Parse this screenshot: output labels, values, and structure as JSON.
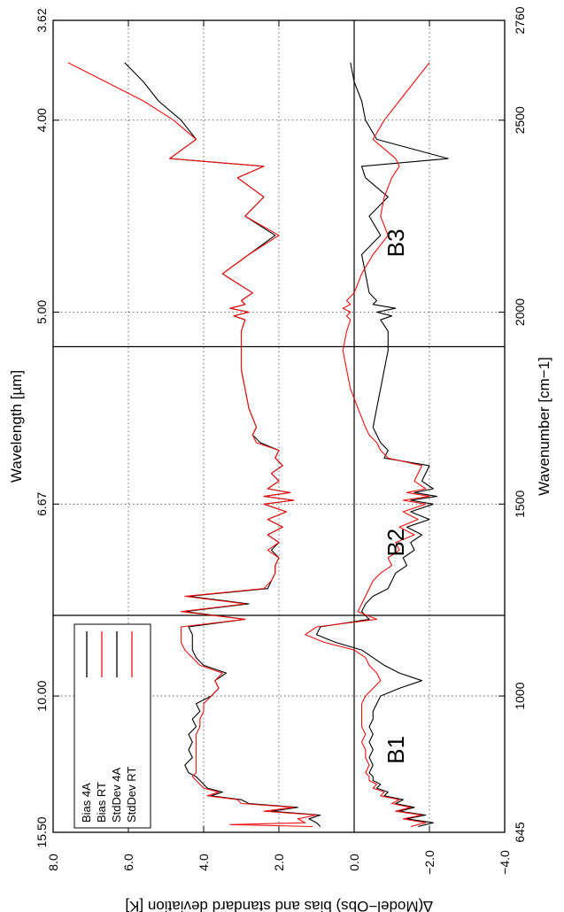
{
  "chart_data": {
    "type": "line",
    "rotated": "page rotated 90 degrees; wavenumber runs bottom to top, value runs left (positive) to right (negative)",
    "xlabel_bottom": "Wavenumber [cm−1]",
    "xlabel_top": "Wavelength [µm]",
    "ylabel": "∆(Model−Obs) bias and standard deviation [K]",
    "xlim": [
      645,
      2760
    ],
    "ylim": [
      -4.0,
      8.0
    ],
    "x_ticks_bottom": [
      "645",
      "1000",
      "1500",
      "2000",
      "2500",
      "2760"
    ],
    "x_ticks_bottom_values": [
      645,
      1000,
      1500,
      2000,
      2500,
      2760
    ],
    "x_ticks_top": [
      "15.50",
      "10.00",
      "6.67",
      "5.00",
      "4.00",
      "3.62"
    ],
    "x_ticks_top_values": [
      645,
      1000,
      1500,
      2000,
      2500,
      2760
    ],
    "y_ticks": [
      "8.0",
      "6.0",
      "4.0",
      "2.0",
      "0.0",
      "−2.0",
      "−4.0"
    ],
    "y_tick_values": [
      8,
      6,
      4,
      2,
      0,
      -2,
      -4
    ],
    "grid": true,
    "zero_line": 0,
    "band_dividers": [
      1210,
      1910
    ],
    "bands": [
      {
        "label": "B1",
        "x": 860
      },
      {
        "label": "B2",
        "x": 1400
      },
      {
        "label": "B3",
        "x": 2180
      }
    ],
    "legend_position": "bottom-left",
    "series": [
      {
        "name": "Bias 4A",
        "color": "#000000",
        "x": [
          660,
          670,
          680,
          690,
          700,
          710,
          720,
          730,
          740,
          750,
          760,
          770,
          780,
          790,
          800,
          820,
          840,
          860,
          880,
          900,
          920,
          940,
          960,
          980,
          1000,
          1020,
          1040,
          1060,
          1080,
          1100,
          1120,
          1140,
          1160,
          1180,
          1200,
          1220,
          1240,
          1260,
          1280,
          1300,
          1320,
          1340,
          1360,
          1380,
          1400,
          1420,
          1440,
          1460,
          1480,
          1500,
          1510,
          1520,
          1530,
          1540,
          1560,
          1580,
          1600,
          1620,
          1640,
          1660,
          1680,
          1700,
          1750,
          1800,
          1850,
          1900,
          1950,
          1980,
          1990,
          2000,
          2010,
          2020,
          2030,
          2050,
          2100,
          2150,
          2200,
          2250,
          2300,
          2350,
          2380,
          2400,
          2450,
          2500,
          2550,
          2600,
          2650
        ],
        "values": [
          0.9,
          1.0,
          1.2,
          0.9,
          2.2,
          1.5,
          2.8,
          3.0,
          3.8,
          3.5,
          3.9,
          4.0,
          4.1,
          4.2,
          4.4,
          4.5,
          4.3,
          4.4,
          4.3,
          4.4,
          4.2,
          4.3,
          4.1,
          4.2,
          3.8,
          3.6,
          3.7,
          3.4,
          4.0,
          4.2,
          4.3,
          4.3,
          4.3,
          4.4,
          2.9,
          4.5,
          2.8,
          4.4,
          2.3,
          2.2,
          2.1,
          2.1,
          2.0,
          2.2,
          2.0,
          2.3,
          1.9,
          2.3,
          1.8,
          2.4,
          1.6,
          2.4,
          1.7,
          2.3,
          2.0,
          2.2,
          1.9,
          2.1,
          2.0,
          2.5,
          2.7,
          2.6,
          2.8,
          2.9,
          3.0,
          3.0,
          3.0,
          2.9,
          3.2,
          2.8,
          3.3,
          2.9,
          3.0,
          2.7,
          3.5,
          2.8,
          2.1,
          2.9,
          2.4,
          3.1,
          2.4,
          4.9,
          4.2,
          4.6,
          5.2,
          5.6,
          6.1
        ]
      },
      {
        "name": "Bias RT",
        "color": "#ee1111",
        "x": [
          660,
          665,
          670,
          680,
          690,
          700,
          710,
          720,
          730,
          740,
          750,
          760,
          770,
          780,
          790,
          800,
          820,
          840,
          860,
          880,
          900,
          920,
          940,
          960,
          980,
          1000,
          1020,
          1040,
          1060,
          1080,
          1100,
          1120,
          1140,
          1160,
          1180,
          1200,
          1220,
          1240,
          1260,
          1280,
          1300,
          1320,
          1340,
          1360,
          1380,
          1400,
          1420,
          1440,
          1460,
          1480,
          1500,
          1510,
          1520,
          1530,
          1540,
          1560,
          1580,
          1600,
          1620,
          1640,
          1660,
          1680,
          1700,
          1750,
          1800,
          1850,
          1900,
          1950,
          1980,
          1990,
          2000,
          2010,
          2020,
          2030,
          2050,
          2100,
          2150,
          2200,
          2250,
          2300,
          2350,
          2380,
          2400,
          2450,
          2500,
          2550,
          2600,
          2650
        ],
        "values": [
          1.1,
          3.3,
          1.3,
          1.5,
          1.0,
          2.4,
          1.6,
          3.0,
          3.1,
          3.9,
          3.6,
          4.0,
          4.1,
          4.2,
          4.3,
          4.2,
          4.2,
          4.2,
          4.2,
          4.2,
          4.2,
          4.1,
          4.1,
          4.0,
          4.0,
          3.8,
          3.6,
          3.7,
          3.5,
          4.1,
          4.3,
          4.5,
          4.6,
          4.6,
          4.6,
          2.9,
          4.6,
          2.9,
          4.5,
          2.4,
          2.2,
          2.1,
          2.1,
          2.0,
          2.3,
          2.0,
          2.3,
          1.9,
          2.3,
          1.8,
          2.4,
          1.6,
          2.4,
          1.7,
          2.3,
          2.0,
          2.2,
          1.9,
          2.1,
          2.0,
          2.6,
          2.7,
          2.6,
          2.8,
          2.9,
          3.0,
          3.0,
          3.0,
          2.9,
          3.2,
          2.8,
          3.3,
          2.9,
          3.0,
          2.7,
          3.5,
          2.8,
          2.0,
          2.9,
          2.4,
          3.1,
          2.4,
          4.9,
          4.2,
          4.8,
          5.6,
          6.6,
          7.6
        ]
      },
      {
        "name": "StdDev 4A",
        "color": "#000000",
        "x": [
          660,
          670,
          680,
          690,
          700,
          710,
          720,
          730,
          740,
          750,
          760,
          770,
          780,
          790,
          800,
          820,
          840,
          860,
          880,
          900,
          920,
          940,
          960,
          980,
          1000,
          1020,
          1040,
          1060,
          1080,
          1100,
          1120,
          1140,
          1160,
          1180,
          1200,
          1220,
          1240,
          1260,
          1280,
          1300,
          1320,
          1340,
          1360,
          1380,
          1400,
          1420,
          1440,
          1460,
          1480,
          1500,
          1510,
          1520,
          1530,
          1540,
          1560,
          1580,
          1600,
          1620,
          1640,
          1660,
          1680,
          1700,
          1750,
          1800,
          1850,
          1900,
          1950,
          1980,
          1990,
          2000,
          2010,
          2020,
          2030,
          2050,
          2100,
          2150,
          2200,
          2250,
          2300,
          2350,
          2380,
          2400,
          2450,
          2500,
          2550,
          2600,
          2650
        ],
        "values": [
          -1.7,
          -2.1,
          -1.4,
          -1.9,
          -1.2,
          -1.6,
          -1.1,
          -1.3,
          -0.8,
          -0.9,
          -0.6,
          -0.7,
          -0.5,
          -0.5,
          -0.4,
          -0.5,
          -0.4,
          -0.5,
          -0.4,
          -0.5,
          -0.4,
          -0.5,
          -0.5,
          -0.6,
          -0.7,
          -1.2,
          -1.8,
          -1.2,
          -0.8,
          -0.5,
          -0.2,
          0.5,
          1.0,
          0.9,
          -0.4,
          -0.2,
          -0.3,
          -0.5,
          -0.9,
          -1.0,
          -1.1,
          -1.4,
          -1.3,
          -1.6,
          -1.5,
          -1.8,
          -1.4,
          -2.0,
          -1.5,
          -2.1,
          -1.5,
          -2.2,
          -1.6,
          -2.1,
          -1.8,
          -1.9,
          -2.0,
          -0.8,
          -0.9,
          -0.7,
          -0.6,
          -0.5,
          -0.6,
          -0.7,
          -0.8,
          -0.9,
          -0.9,
          -0.7,
          -1.0,
          -0.6,
          -1.1,
          -0.5,
          -0.6,
          -0.4,
          -0.3,
          -0.2,
          -0.7,
          -0.4,
          -0.9,
          -0.3,
          -0.2,
          -2.5,
          -0.6,
          -0.3,
          -0.2,
          0.0,
          0.1
        ]
      },
      {
        "name": "StdDev RT",
        "color": "#ee1111",
        "x": [
          660,
          670,
          680,
          690,
          700,
          710,
          720,
          730,
          740,
          750,
          760,
          770,
          780,
          790,
          800,
          820,
          840,
          860,
          880,
          900,
          920,
          940,
          960,
          980,
          1000,
          1020,
          1040,
          1060,
          1080,
          1100,
          1120,
          1140,
          1160,
          1180,
          1200,
          1220,
          1240,
          1260,
          1280,
          1300,
          1320,
          1340,
          1360,
          1380,
          1400,
          1420,
          1440,
          1460,
          1480,
          1500,
          1510,
          1520,
          1530,
          1540,
          1560,
          1580,
          1600,
          1620,
          1640,
          1660,
          1680,
          1700,
          1750,
          1800,
          1850,
          1900,
          1950,
          1980,
          1990,
          2000,
          2010,
          2020,
          2030,
          2050,
          2100,
          2150,
          2200,
          2250,
          2300,
          2350,
          2380,
          2400,
          2450,
          2500,
          2550,
          2600,
          2650
        ],
        "values": [
          -1.5,
          -1.9,
          -1.3,
          -1.8,
          -1.1,
          -1.5,
          -1.0,
          -1.2,
          -0.7,
          -0.8,
          -0.5,
          -0.6,
          -0.4,
          -0.4,
          -0.3,
          -0.4,
          -0.3,
          -0.3,
          -0.2,
          -0.3,
          -0.2,
          -0.2,
          -0.2,
          -0.2,
          -0.3,
          -0.5,
          -0.7,
          -0.6,
          -0.4,
          -0.3,
          0.0,
          0.8,
          1.3,
          1.0,
          -0.6,
          -0.1,
          -0.2,
          -0.3,
          -0.4,
          -0.5,
          -0.7,
          -1.0,
          -0.9,
          -1.2,
          -1.1,
          -1.6,
          -1.2,
          -1.7,
          -1.3,
          -1.9,
          -1.3,
          -2.0,
          -1.4,
          -1.9,
          -1.6,
          -1.7,
          -1.8,
          -0.9,
          -0.7,
          -0.6,
          -0.4,
          -0.3,
          -0.1,
          0.1,
          0.2,
          0.3,
          0.2,
          0.1,
          0.2,
          0.1,
          0.3,
          0.1,
          0.2,
          0.0,
          -0.2,
          -0.5,
          -0.9,
          -0.7,
          -0.8,
          -1.0,
          -1.2,
          -1.1,
          -0.5,
          -0.8,
          -1.2,
          -1.6,
          -2.0
        ]
      }
    ]
  }
}
